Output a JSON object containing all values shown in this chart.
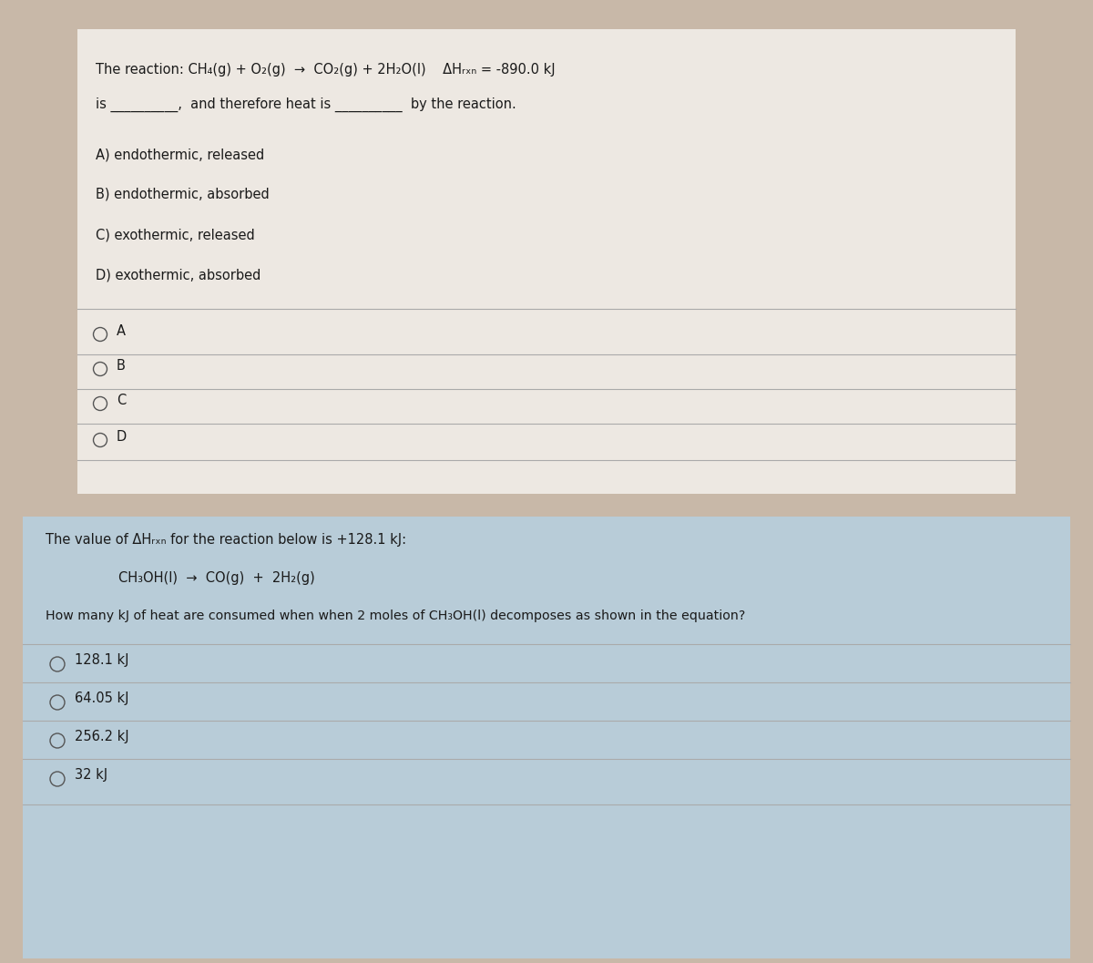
{
  "bg_outer": "#c8b8a8",
  "panel1_bg": "#ede8e2",
  "panel2_bg": "#b8ccd8",
  "text_color": "#1a1a1a",
  "line_color": "#aaaaaa",
  "radio_color": "#555555",
  "q1_options": [
    "A) endothermic, released",
    "B) endothermic, absorbed",
    "C) exothermic, released",
    "D) exothermic, absorbed"
  ],
  "q1_radio_labels": [
    "A",
    "B",
    "C",
    "D"
  ],
  "q2_radio_labels": [
    "128.1 kJ",
    "64.05 kJ",
    "256.2 kJ",
    "32 kJ"
  ]
}
